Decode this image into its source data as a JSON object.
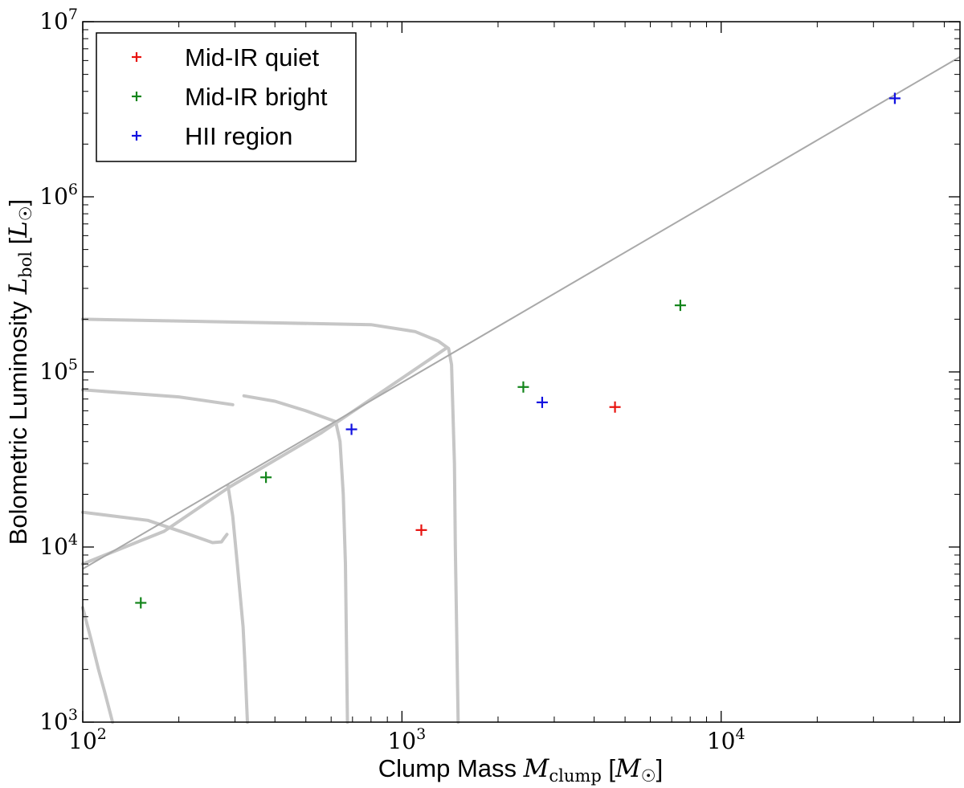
{
  "chart_data": {
    "type": "scatter",
    "title": "",
    "xscale": "log",
    "yscale": "log",
    "xlim": [
      100,
      56000
    ],
    "ylim": [
      1000,
      10000000
    ],
    "xlabel": {
      "text": "Clump Mass",
      "symbol": "M",
      "subscript": "clump",
      "unit_symbol": "M",
      "unit_subscript": "☉"
    },
    "ylabel": {
      "text": "Bolometric Luminosity",
      "symbol": "L",
      "subscript": "bol",
      "unit_symbol": "L",
      "unit_subscript": "☉"
    },
    "xticks": [
      {
        "value": 100,
        "base": "10",
        "exp": "2"
      },
      {
        "value": 1000,
        "base": "10",
        "exp": "3"
      },
      {
        "value": 10000,
        "base": "10",
        "exp": "4"
      }
    ],
    "yticks": [
      {
        "value": 1000,
        "base": "10",
        "exp": "3"
      },
      {
        "value": 10000,
        "base": "10",
        "exp": "4"
      },
      {
        "value": 100000,
        "base": "10",
        "exp": "5"
      },
      {
        "value": 1000000,
        "base": "10",
        "exp": "6"
      },
      {
        "value": 10000000,
        "base": "10",
        "exp": "7"
      }
    ],
    "legend_position": "top-left",
    "colors": {
      "mid_ir_quiet": "#e8130f",
      "mid_ir_bright": "#13851b",
      "hii_region": "#1010e0",
      "tracks": "#c6c6c6",
      "reference_line": "#a9a9a9"
    },
    "series": [
      {
        "name": "Mid-IR quiet",
        "color_key": "mid_ir_quiet",
        "points": [
          [
            1150,
            12500
          ],
          [
            4650,
            63000
          ]
        ]
      },
      {
        "name": "Mid-IR bright",
        "color_key": "mid_ir_bright",
        "points": [
          [
            152,
            4800
          ],
          [
            375,
            25000
          ],
          [
            2400,
            82000
          ],
          [
            7450,
            240000
          ]
        ]
      },
      {
        "name": "HII region",
        "color_key": "hii_region",
        "points": [
          [
            695,
            47000
          ],
          [
            2750,
            67000
          ],
          [
            35000,
            3650000
          ]
        ]
      }
    ],
    "reference_line": {
      "description": "power-law upper envelope",
      "points": [
        [
          100,
          7500
        ],
        [
          56000,
          6300000
        ]
      ]
    },
    "tracks": [
      [
        [
          100,
          200000
        ],
        [
          800,
          186000
        ],
        [
          1100,
          170000
        ],
        [
          1300,
          150000
        ],
        [
          1400,
          136000
        ],
        [
          1430,
          110000
        ],
        [
          1460,
          30000
        ],
        [
          1470,
          10000
        ],
        [
          1500,
          1000
        ]
      ],
      [
        [
          100,
          79000
        ],
        [
          200,
          72000
        ],
        [
          295,
          65000
        ]
      ],
      [
        [
          320,
          73000
        ],
        [
          400,
          68000
        ],
        [
          500,
          60000
        ],
        [
          620,
          52000
        ],
        [
          640,
          40000
        ],
        [
          655,
          20000
        ],
        [
          665,
          8000
        ],
        [
          670,
          3000
        ],
        [
          675,
          1000
        ]
      ],
      [
        [
          100,
          15800
        ],
        [
          160,
          14200
        ],
        [
          210,
          12000
        ],
        [
          255,
          10600
        ],
        [
          272,
          10700
        ],
        [
          278,
          11300
        ],
        [
          283,
          11800
        ]
      ],
      [
        [
          285,
          22500
        ],
        [
          295,
          15000
        ],
        [
          305,
          8000
        ],
        [
          318,
          3500
        ],
        [
          322,
          2200
        ],
        [
          328,
          1000
        ]
      ],
      [
        [
          100,
          4500
        ],
        [
          106,
          3000
        ],
        [
          112,
          2000
        ],
        [
          117,
          1500
        ],
        [
          124,
          1000
        ]
      ],
      [
        [
          100,
          8000
        ],
        [
          180,
          12300
        ],
        [
          288,
          22000
        ],
        [
          560,
          45000
        ],
        [
          630,
          52000
        ],
        [
          1380,
          137000
        ]
      ]
    ]
  }
}
